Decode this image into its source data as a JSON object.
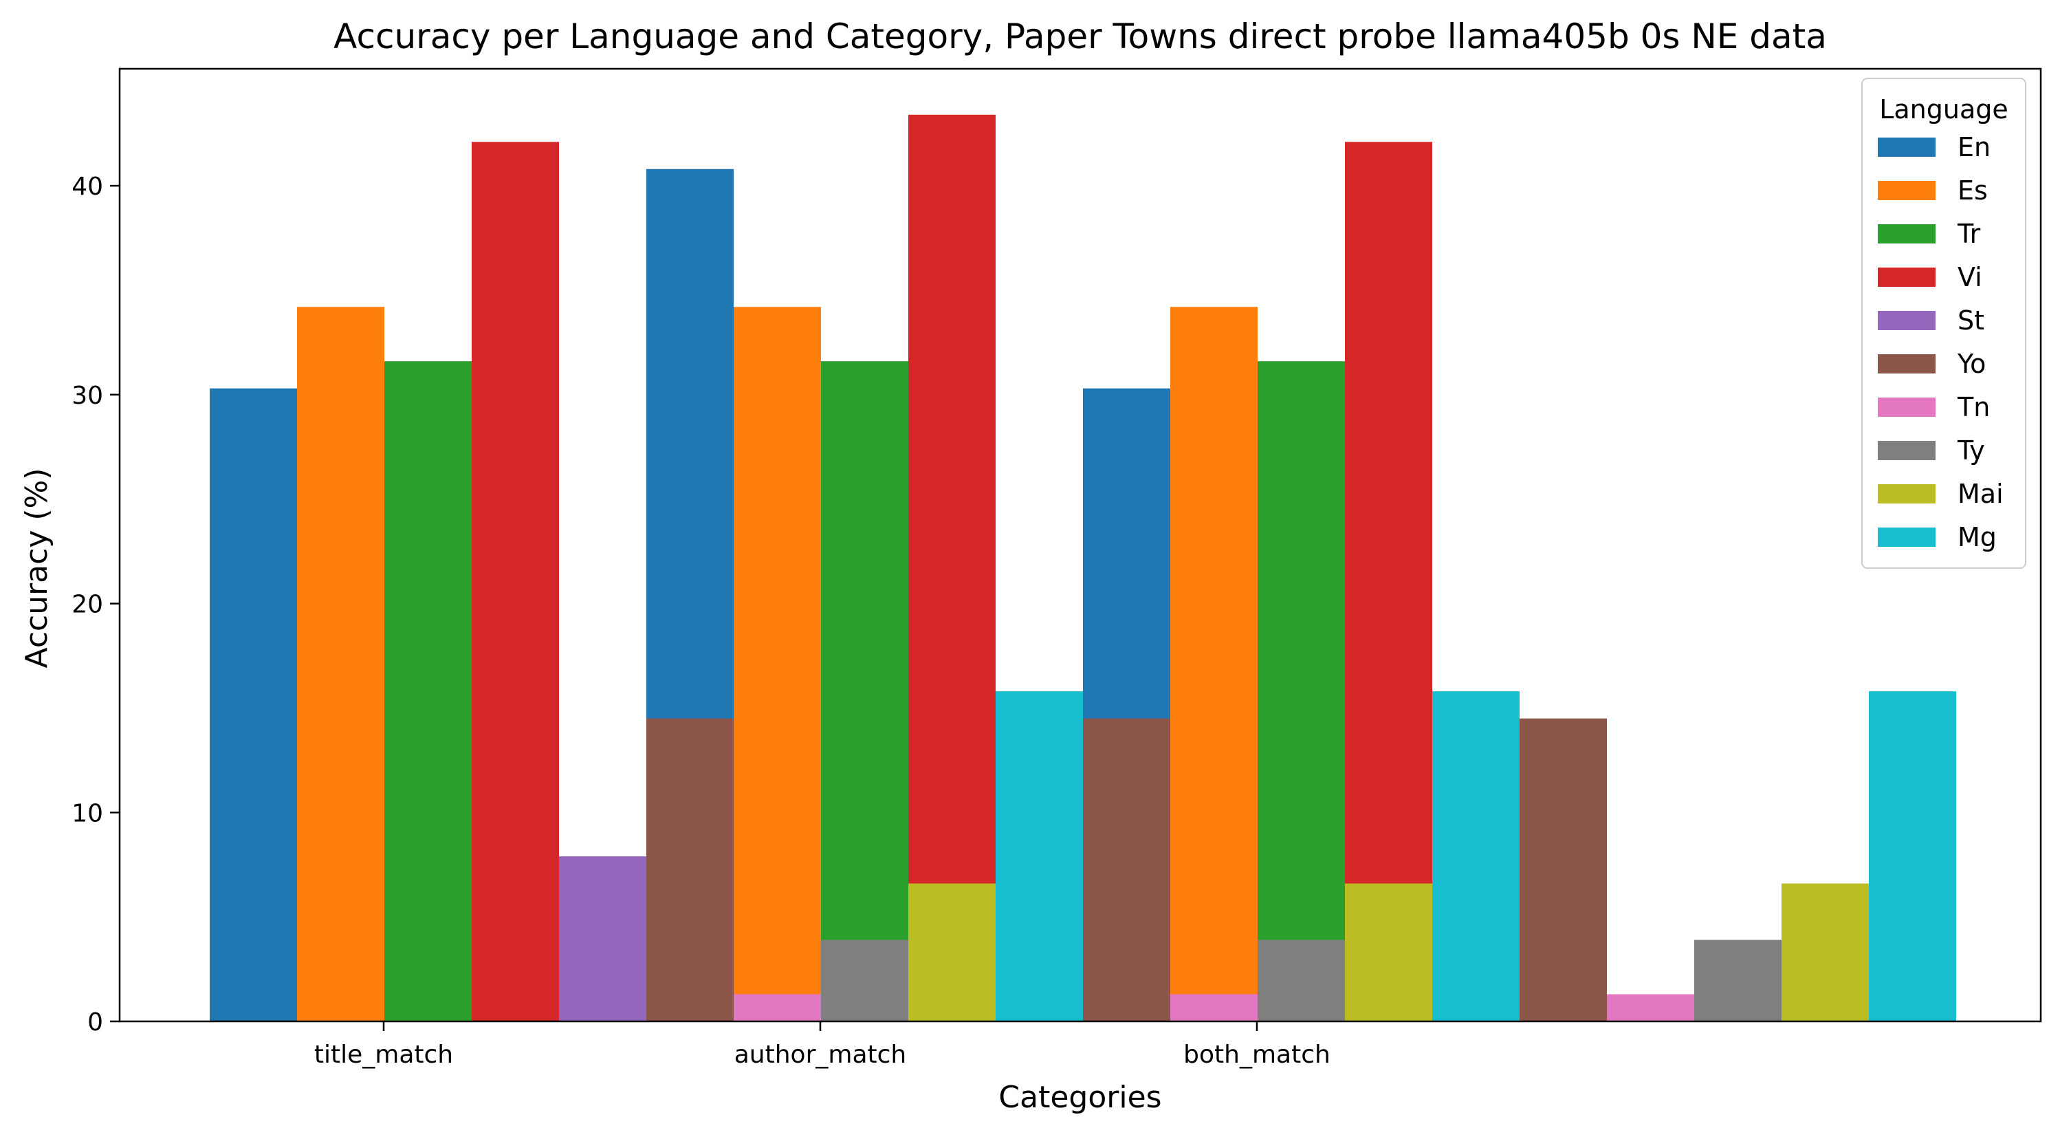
{
  "chart_data": {
    "type": "bar",
    "title": "Accuracy per Language and Category, Paper Towns direct probe llama405b 0s NE data",
    "xlabel": "Categories",
    "ylabel": "Accuracy (%)",
    "ylim": [
      0,
      45.6
    ],
    "yticks": [
      0,
      10,
      20,
      30,
      40
    ],
    "ytick_labels": [
      "0",
      "10",
      "20",
      "30",
      "40"
    ],
    "categories": [
      "title_match",
      "author_match",
      "both_match"
    ],
    "grid": false,
    "legend": {
      "title": "Language",
      "placement": "top-right"
    },
    "series": [
      {
        "name": "En",
        "color": "#1f77b4",
        "values": [
          30.3,
          40.8,
          30.3
        ]
      },
      {
        "name": "Es",
        "color": "#ff7f0e",
        "values": [
          34.2,
          34.2,
          34.2
        ]
      },
      {
        "name": "Tr",
        "color": "#2ca02c",
        "values": [
          31.6,
          31.6,
          31.6
        ]
      },
      {
        "name": "Vi",
        "color": "#d62728",
        "values": [
          42.1,
          43.4,
          42.1
        ]
      },
      {
        "name": "St",
        "color": "#9467bd",
        "values": [
          7.9,
          0,
          0
        ]
      },
      {
        "name": "Yo",
        "color": "#8c564b",
        "values": [
          14.5,
          14.5,
          14.5
        ]
      },
      {
        "name": "Tn",
        "color": "#e377c2",
        "values": [
          1.3,
          1.3,
          1.3
        ]
      },
      {
        "name": "Ty",
        "color": "#7f7f7f",
        "values": [
          3.9,
          3.9,
          3.9
        ]
      },
      {
        "name": "Mai",
        "color": "#bcbd22",
        "values": [
          6.6,
          6.6,
          6.6
        ]
      },
      {
        "name": "Mg",
        "color": "#17becf",
        "values": [
          15.8,
          15.8,
          15.8
        ]
      }
    ]
  }
}
